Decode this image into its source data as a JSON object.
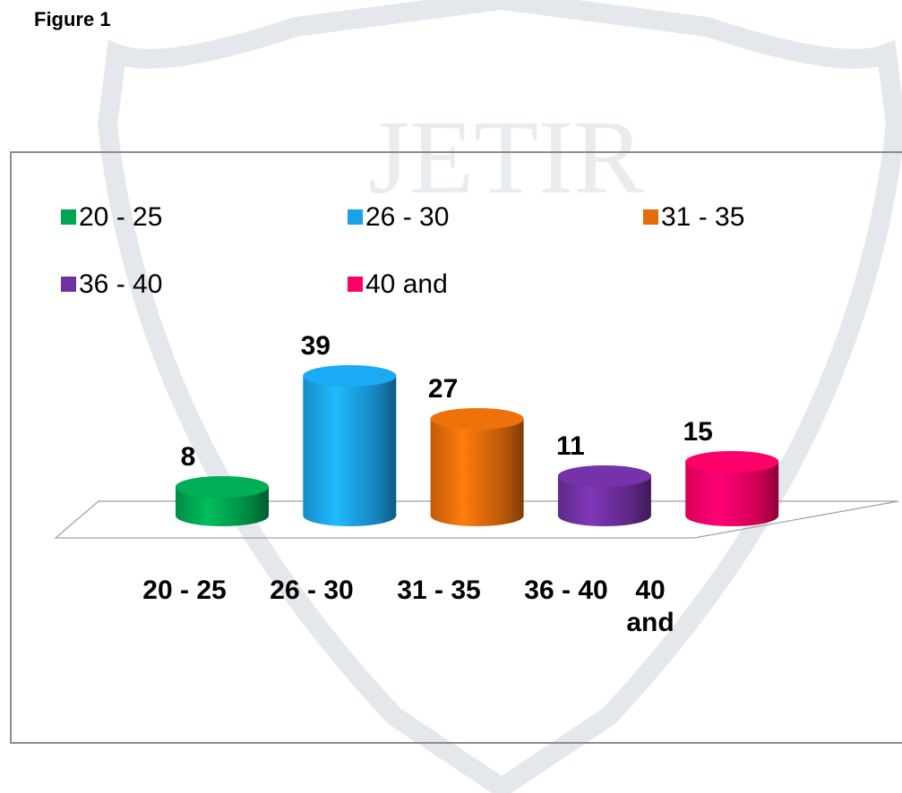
{
  "figure_label": "Figure 1",
  "watermark": "JETIR",
  "chart_data": {
    "type": "cylinder",
    "categories": [
      "20 - 25",
      "26 - 30",
      "31 - 35",
      "36 - 40",
      "40 and"
    ],
    "values": [
      8,
      39,
      27,
      11,
      15
    ],
    "colors": [
      "#00a651",
      "#1aa3e8",
      "#e46c0a",
      "#7030a0",
      "#ff0066"
    ],
    "legend": true,
    "data_labels": true
  }
}
